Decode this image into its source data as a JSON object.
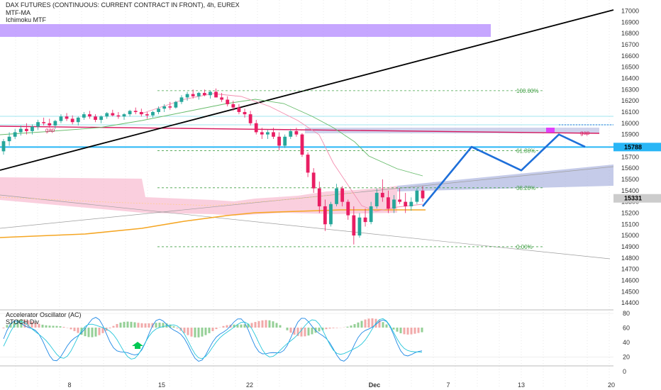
{
  "header": {
    "title": "DAX FUTURES (CONTINUOUS: CURRENT CONTRACT IN FRONT), 4h, EUREX",
    "indicator_1": "MTF-MA",
    "indicator_2": "Ichimoku MTF"
  },
  "oscillator": {
    "name_1": "Accelerator Oscillator (AC)",
    "name_2": "STOCH Div",
    "axis_ticks": [
      80,
      60,
      40,
      20,
      0
    ]
  },
  "chart_data": {
    "type": "candlestick",
    "title": "DAX FUTURES (CONTINUOUS: CURRENT CONTRACT IN FRONT), 4h, EUREX",
    "y_axis_ticks": [
      17000,
      16900,
      16800,
      16700,
      16600,
      16500,
      16400,
      16300,
      16200,
      16100,
      16000,
      15900,
      15800,
      15700,
      15600,
      15500,
      15400,
      15300,
      15200,
      15100,
      15000,
      14900,
      14800,
      14700,
      14600,
      14500,
      14400
    ],
    "ylim": [
      14350,
      17060
    ],
    "x_axis_labels": [
      "8",
      "15",
      "22",
      "Dec",
      "7",
      "13",
      "20"
    ],
    "price_labels": [
      {
        "text": "15788",
        "value": 15788,
        "color": "#29b6f6"
      },
      {
        "text": "15331",
        "value": 15331,
        "color": "#cccccc"
      }
    ],
    "fibonacci_levels": [
      {
        "label": "100.00%",
        "value": 16290
      },
      {
        "label": "61.80%",
        "value": 15755
      },
      {
        "label": "38.20%",
        "value": 15425
      },
      {
        "label": "0.00%",
        "value": 14900
      }
    ],
    "annotations": [
      "gap",
      "gap"
    ],
    "candles": [
      [
        15750,
        15860,
        15720,
        15840
      ],
      [
        15840,
        15920,
        15800,
        15880
      ],
      [
        15880,
        15950,
        15860,
        15920
      ],
      [
        15920,
        15980,
        15890,
        15950
      ],
      [
        15950,
        16000,
        15900,
        15930
      ],
      [
        15930,
        15990,
        15900,
        15970
      ],
      [
        15970,
        16030,
        15940,
        16010
      ],
      [
        16010,
        16050,
        15980,
        16000
      ],
      [
        16000,
        16040,
        15960,
        15980
      ],
      [
        15980,
        16030,
        15950,
        16020
      ],
      [
        16020,
        16080,
        16000,
        16060
      ],
      [
        16060,
        16090,
        16020,
        16040
      ],
      [
        16040,
        16070,
        15990,
        16010
      ],
      [
        16010,
        16060,
        15980,
        16050
      ],
      [
        16050,
        16100,
        16030,
        16080
      ],
      [
        16080,
        16110,
        16040,
        16060
      ],
      [
        16060,
        16080,
        16010,
        16030
      ],
      [
        16030,
        16070,
        16000,
        16060
      ],
      [
        16060,
        16100,
        16040,
        16090
      ],
      [
        16090,
        16120,
        16060,
        16070
      ],
      [
        16070,
        16100,
        16040,
        16060
      ],
      [
        16060,
        16090,
        16030,
        16080
      ],
      [
        16080,
        16120,
        16060,
        16110
      ],
      [
        16110,
        16140,
        16080,
        16100
      ],
      [
        16100,
        16130,
        16060,
        16080
      ],
      [
        16080,
        16100,
        16040,
        16070
      ],
      [
        16070,
        16110,
        16050,
        16100
      ],
      [
        16100,
        16150,
        16080,
        16130
      ],
      [
        16130,
        16170,
        16100,
        16150
      ],
      [
        16150,
        16190,
        16120,
        16140
      ],
      [
        16140,
        16200,
        16130,
        16190
      ],
      [
        16190,
        16250,
        16170,
        16230
      ],
      [
        16230,
        16280,
        16200,
        16260
      ],
      [
        16260,
        16300,
        16220,
        16240
      ],
      [
        16240,
        16280,
        16210,
        16270
      ],
      [
        16270,
        16300,
        16240,
        16250
      ],
      [
        16250,
        16290,
        16220,
        16280
      ],
      [
        16280,
        16310,
        16230,
        16230
      ],
      [
        16230,
        16270,
        16190,
        16210
      ],
      [
        16210,
        16240,
        16150,
        16170
      ],
      [
        16170,
        16200,
        16110,
        16140
      ],
      [
        16140,
        16170,
        16080,
        16100
      ],
      [
        16100,
        16130,
        16050,
        16080
      ],
      [
        16080,
        16110,
        15980,
        16000
      ],
      [
        16000,
        16030,
        15900,
        15920
      ],
      [
        15920,
        15960,
        15860,
        15900
      ],
      [
        15900,
        15940,
        15860,
        15920
      ],
      [
        15920,
        15960,
        15860,
        15880
      ],
      [
        15880,
        15920,
        15760,
        15800
      ],
      [
        15800,
        15900,
        15780,
        15880
      ],
      [
        15880,
        15950,
        15860,
        15930
      ],
      [
        15930,
        15960,
        15880,
        15900
      ],
      [
        15900,
        15910,
        15700,
        15720
      ],
      [
        15720,
        15740,
        15520,
        15560
      ],
      [
        15560,
        15600,
        15380,
        15420
      ],
      [
        15420,
        15480,
        15200,
        15260
      ],
      [
        15260,
        15320,
        15040,
        15100
      ],
      [
        15100,
        15300,
        15080,
        15280
      ],
      [
        15280,
        15460,
        15260,
        15420
      ],
      [
        15420,
        15440,
        15260,
        15300
      ],
      [
        15300,
        15320,
        15140,
        15180
      ],
      [
        15180,
        15260,
        14920,
        15000
      ],
      [
        15000,
        15200,
        14980,
        15160
      ],
      [
        15160,
        15240,
        15080,
        15120
      ],
      [
        15120,
        15300,
        15100,
        15260
      ],
      [
        15260,
        15420,
        15240,
        15380
      ],
      [
        15380,
        15500,
        15300,
        15340
      ],
      [
        15340,
        15400,
        15200,
        15240
      ],
      [
        15240,
        15360,
        15200,
        15320
      ],
      [
        15320,
        15420,
        15280,
        15300
      ],
      [
        15300,
        15380,
        15200,
        15260
      ],
      [
        15260,
        15340,
        15220,
        15300
      ],
      [
        15300,
        15420,
        15280,
        15400
      ],
      [
        15400,
        15440,
        15300,
        15331
      ]
    ],
    "projection_path": [
      15260,
      15790,
      15580,
      15900,
      15790
    ]
  },
  "colors": {
    "up_candle": "#26a69a",
    "down_candle": "#e91e63",
    "trendline": "#000000",
    "resistance_line": "#d81b60",
    "support_line": "#29b6f6",
    "fib_line": "#43a047",
    "projection": "#1e6fd9",
    "ma_orange": "#f5a623",
    "cloud_pink": "#f8bbd0",
    "cloud_blue": "#9fa8da",
    "zone_purple": "#b388ff"
  }
}
